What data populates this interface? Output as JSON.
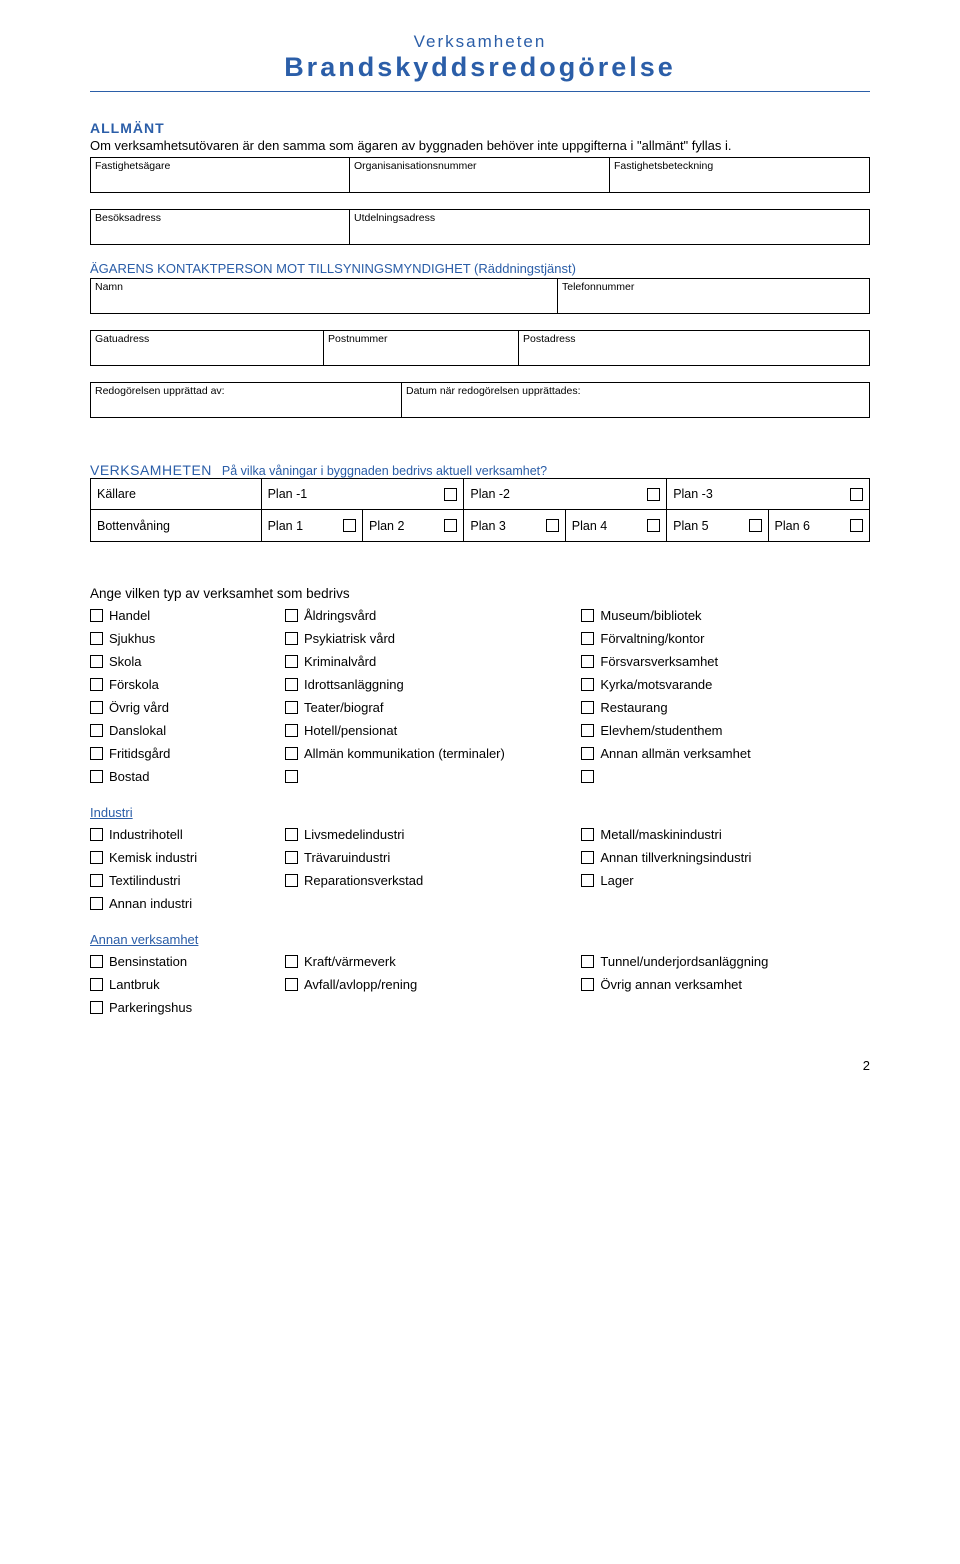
{
  "header": {
    "line1": "Verksamheten",
    "line2": "Brandskyddsredogörelse"
  },
  "allmant": {
    "heading": "ALLMÄNT",
    "intro": "Om verksamhetsutövaren är den samma som ägaren av byggnaden behöver inte uppgifterna i \"allmänt\" fyllas i.",
    "row1": {
      "c1": "Fastighetsägare",
      "c2": "Organisanisationsnummer",
      "c3": "Fastighetsbeteckning"
    },
    "row2": {
      "c1": "Besöksadress",
      "c2": "Utdelningsadress"
    }
  },
  "agarens": {
    "heading": "ÄGARENS KONTAKTPERSON MOT TILLSYNINGSMYNDIGHET (Räddningstjänst)",
    "row1": {
      "c1": "Namn",
      "c2": "Telefonnummer"
    },
    "row2": {
      "c1": "Gatuadress",
      "c2": "Postnummer",
      "c3": "Postadress"
    },
    "row3": {
      "c1": "Redogörelsen upprättad av:",
      "c2": "Datum när redogörelsen upprättades:"
    }
  },
  "verksamheten": {
    "label": "VERKSAMHETEN",
    "question": "På vilka våningar i byggnaden bedrivs aktuell verksamhet?",
    "kallare": "Källare",
    "plan_minus": [
      "Plan -1",
      "Plan -2",
      "Plan -3"
    ],
    "botten": "Bottenvåning",
    "plan_plus": [
      "Plan 1",
      "Plan 2",
      "Plan 3",
      "Plan 4",
      "Plan 5",
      "Plan 6"
    ]
  },
  "type": {
    "heading": "Ange vilken typ av verksamhet som bedrivs",
    "rows": [
      [
        "Handel",
        "Åldringsvård",
        "Museum/bibliotek"
      ],
      [
        "Sjukhus",
        "Psykiatrisk vård",
        "Förvaltning/kontor"
      ],
      [
        "Skola",
        "Kriminalvård",
        "Försvarsverksamhet"
      ],
      [
        "Förskola",
        "Idrottsanläggning",
        "Kyrka/motsvarande"
      ],
      [
        "Övrig vård",
        "Teater/biograf",
        "Restaurang"
      ],
      [
        "Danslokal",
        "Hotell/pensionat",
        "Elevhem/studenthem"
      ],
      [
        "Fritidsgård",
        "Allmän kommunikation (terminaler)",
        "Annan allmän verksamhet"
      ],
      [
        "Bostad",
        "",
        ""
      ]
    ]
  },
  "industri": {
    "heading": "Industri",
    "rows": [
      [
        "Industrihotell",
        "Livsmedelindustri",
        "Metall/maskinindustri"
      ],
      [
        "Kemisk industri",
        "Trävaruindustri",
        "Annan tillverkningsindustri"
      ],
      [
        "Textilindustri",
        "Reparationsverkstad",
        "Lager"
      ],
      [
        "Annan industri",
        null,
        null
      ]
    ]
  },
  "annan": {
    "heading": "Annan verksamhet",
    "rows": [
      [
        "Bensinstation",
        "Kraft/värmeverk",
        "Tunnel/underjordsanläggning"
      ],
      [
        "Lantbruk",
        "Avfall/avlopp/rening",
        "Övrig annan verksamhet"
      ],
      [
        "Parkeringshus",
        null,
        null
      ]
    ]
  },
  "pagenum": "2",
  "colors": {
    "accent": "#2b5ea8",
    "text": "#000000",
    "border": "#000000",
    "background": "#ffffff"
  }
}
